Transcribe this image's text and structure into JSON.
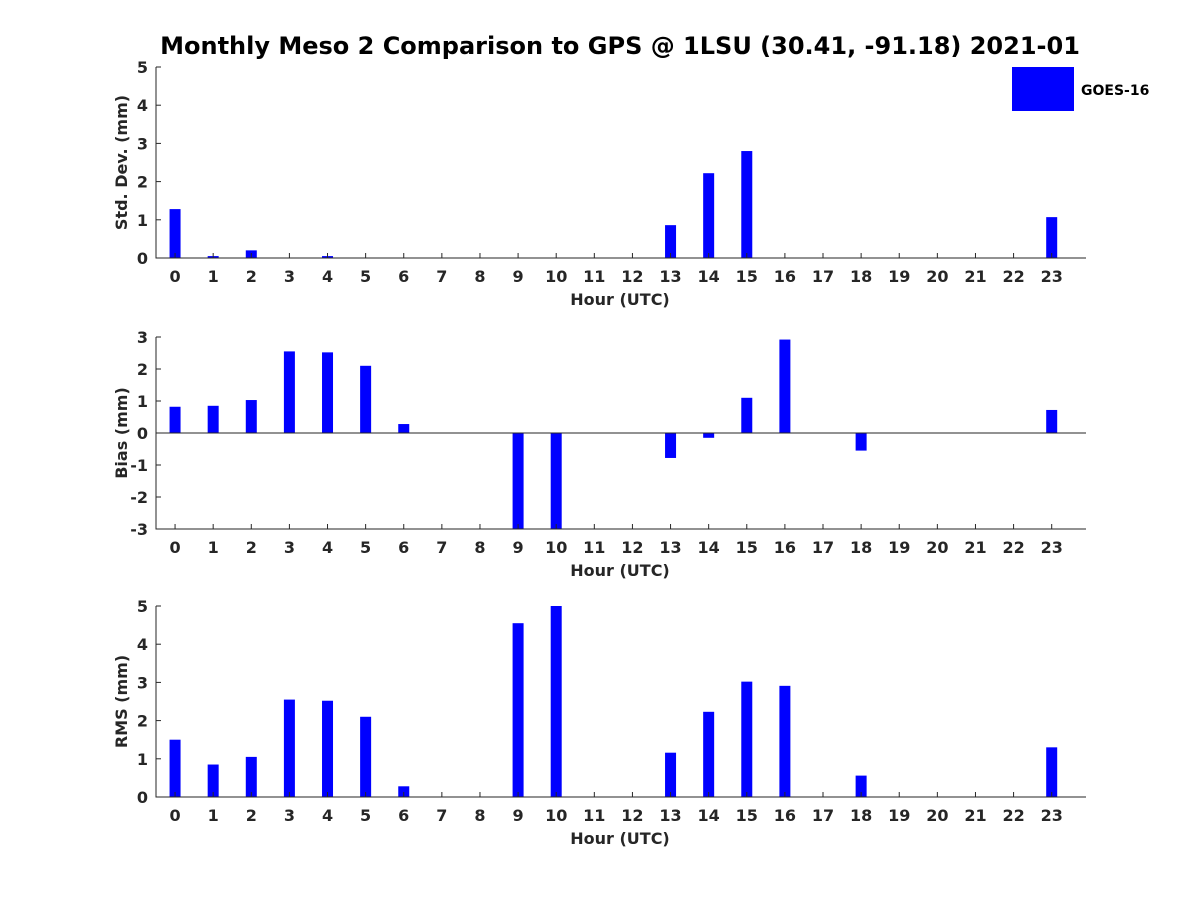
{
  "title": "Monthly Meso 2 Comparison to GPS @ 1LSU (30.41, -91.18) 2021-01",
  "legend": {
    "label": "GOES-16",
    "color": "#0000ff",
    "placement": "top-right"
  },
  "chart_data": [
    {
      "type": "bar",
      "name": "std-dev",
      "xlabel": "Hour (UTC)",
      "ylabel": "Std. Dev. (mm)",
      "ylim": [
        0,
        5
      ],
      "yticks": [
        0,
        1,
        2,
        3,
        4,
        5
      ],
      "categories": [
        0,
        1,
        2,
        3,
        4,
        5,
        6,
        7,
        8,
        9,
        10,
        11,
        12,
        13,
        14,
        15,
        16,
        17,
        18,
        19,
        20,
        21,
        22,
        23
      ],
      "values": [
        1.28,
        0.05,
        0.2,
        0,
        0.05,
        0,
        0,
        0,
        0,
        0,
        0,
        0,
        0,
        0.86,
        2.22,
        2.8,
        0,
        0,
        0,
        0,
        0,
        0,
        0,
        1.07
      ]
    },
    {
      "type": "bar",
      "name": "bias",
      "xlabel": "Hour (UTC)",
      "ylabel": "Bias (mm)",
      "ylim": [
        -3,
        3
      ],
      "yticks": [
        -3,
        -2,
        -1,
        0,
        1,
        2,
        3
      ],
      "categories": [
        0,
        1,
        2,
        3,
        4,
        5,
        6,
        7,
        8,
        9,
        10,
        11,
        12,
        13,
        14,
        15,
        16,
        17,
        18,
        19,
        20,
        21,
        22,
        23
      ],
      "values": [
        0.82,
        0.85,
        1.03,
        2.55,
        2.52,
        2.1,
        0.28,
        0,
        0,
        -3.0,
        -3.0,
        0,
        0,
        -0.78,
        -0.15,
        1.1,
        2.92,
        0,
        -0.55,
        0,
        0,
        0,
        0,
        0.72
      ]
    },
    {
      "type": "bar",
      "name": "rms",
      "xlabel": "Hour (UTC)",
      "ylabel": "RMS (mm)",
      "ylim": [
        0,
        5
      ],
      "yticks": [
        0,
        1,
        2,
        3,
        4,
        5
      ],
      "categories": [
        0,
        1,
        2,
        3,
        4,
        5,
        6,
        7,
        8,
        9,
        10,
        11,
        12,
        13,
        14,
        15,
        16,
        17,
        18,
        19,
        20,
        21,
        22,
        23
      ],
      "values": [
        1.5,
        0.85,
        1.05,
        2.55,
        2.52,
        2.1,
        0.28,
        0,
        0,
        4.55,
        5.0,
        0,
        0,
        1.16,
        2.23,
        3.02,
        2.91,
        0,
        0.56,
        0,
        0,
        0,
        0,
        1.3
      ]
    }
  ]
}
